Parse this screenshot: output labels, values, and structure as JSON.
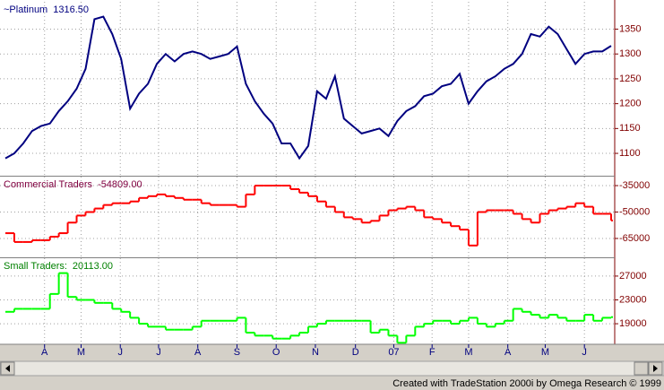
{
  "footer": "Created with TradeStation 2000i by Omega Research © 1999",
  "chart_data": [
    {
      "type": "line",
      "title": "~Platinum",
      "last_label": "1316.50",
      "color": "#000080",
      "label_color": "#000080",
      "values": [
        1090,
        1100,
        1120,
        1145,
        1155,
        1160,
        1185,
        1205,
        1230,
        1270,
        1370,
        1375,
        1340,
        1290,
        1190,
        1220,
        1240,
        1280,
        1300,
        1285,
        1300,
        1305,
        1300,
        1290,
        1295,
        1300,
        1315,
        1240,
        1205,
        1180,
        1160,
        1120,
        1120,
        1090,
        1115,
        1225,
        1210,
        1255,
        1170,
        1155,
        1140,
        1145,
        1150,
        1135,
        1165,
        1185,
        1195,
        1215,
        1220,
        1235,
        1240,
        1260,
        1200,
        1225,
        1245,
        1255,
        1270,
        1280,
        1300,
        1340,
        1335,
        1355,
        1340,
        1310,
        1280,
        1300,
        1305,
        1305,
        1316.5
      ],
      "ylim": [
        1055,
        1405
      ],
      "yticks": [
        1100,
        1150,
        1200,
        1250,
        1300,
        1350
      ],
      "grid": true
    },
    {
      "type": "step",
      "title": "Commercial Traders",
      "last_label": "-54809.00",
      "color": "#ff0000",
      "label_color": "#800040",
      "values": [
        -62000,
        -67000,
        -67000,
        -66000,
        -66000,
        -64000,
        -62000,
        -56000,
        -52000,
        -50000,
        -48000,
        -46000,
        -45000,
        -45000,
        -44000,
        -42000,
        -41000,
        -40000,
        -41000,
        -42000,
        -43000,
        -43000,
        -45000,
        -46000,
        -46000,
        -46000,
        -47000,
        -40000,
        -35000,
        -35000,
        -35000,
        -35000,
        -37000,
        -39000,
        -41000,
        -44000,
        -47000,
        -50000,
        -53000,
        -54000,
        -56000,
        -55000,
        -52000,
        -49000,
        -48000,
        -47000,
        -49000,
        -53000,
        -54000,
        -56000,
        -58000,
        -60000,
        -69000,
        -50000,
        -49000,
        -49000,
        -49000,
        -51000,
        -54000,
        -56000,
        -51000,
        -49000,
        -48000,
        -47000,
        -45000,
        -47000,
        -51000,
        -51000,
        -54809
      ],
      "ylim": [
        -75700,
        -29900
      ],
      "yticks": [
        -65000,
        -50000,
        -35000
      ],
      "grid": true
    },
    {
      "type": "step",
      "title": "Small Traders:",
      "last_label": "20113.00",
      "color": "#00ff00",
      "label_color": "#008000",
      "values": [
        21000,
        21500,
        21500,
        21500,
        21500,
        24000,
        27500,
        23500,
        23000,
        23000,
        22500,
        22500,
        21500,
        21000,
        20000,
        19000,
        18500,
        18500,
        18000,
        18000,
        18000,
        18500,
        19500,
        19500,
        19500,
        19500,
        20000,
        17500,
        17000,
        17000,
        16500,
        16500,
        17000,
        17500,
        18500,
        19000,
        19500,
        19500,
        19500,
        19500,
        19500,
        17500,
        18000,
        17000,
        15800,
        17000,
        18500,
        19000,
        19500,
        19500,
        19000,
        19500,
        20000,
        19000,
        18500,
        19000,
        19500,
        21500,
        21000,
        20500,
        20000,
        20500,
        20000,
        19500,
        19500,
        20500,
        19500,
        20000,
        20113
      ],
      "ylim": [
        15700,
        30000
      ],
      "yticks": [
        19000,
        23000,
        27000
      ],
      "grid": true,
      "xlim": [
        -0.2,
        68.2
      ],
      "xticks": [
        {
          "value": 4.4,
          "label": "A"
        },
        {
          "value": 8.5,
          "label": "M"
        },
        {
          "value": 12.9,
          "label": "J"
        },
        {
          "value": 17.2,
          "label": "J"
        },
        {
          "value": 21.6,
          "label": "A"
        },
        {
          "value": 26,
          "label": "S"
        },
        {
          "value": 30.4,
          "label": "O"
        },
        {
          "value": 34.8,
          "label": "N"
        },
        {
          "value": 39.3,
          "label": "D"
        },
        {
          "value": 43.6,
          "label": "07"
        },
        {
          "value": 47.9,
          "label": "F"
        },
        {
          "value": 52,
          "label": "M"
        },
        {
          "value": 56.4,
          "label": "A"
        },
        {
          "value": 60.6,
          "label": "M"
        },
        {
          "value": 65,
          "label": "J"
        }
      ]
    }
  ]
}
